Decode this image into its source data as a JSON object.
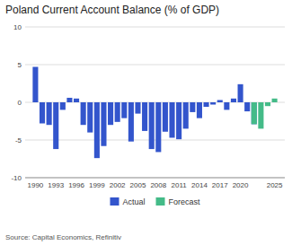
{
  "chart_data": {
    "type": "bar",
    "title": "Poland Current Account Balance (% of GDP)",
    "annotations": [
      "Source: Capital Economics, Refinitiv"
    ],
    "series": [
      {
        "name": "Actual",
        "color": "#3355cc",
        "x": [
          1990,
          1991,
          1992,
          1993,
          1994,
          1995,
          1996,
          1997,
          1998,
          1999,
          2000,
          2001,
          2002,
          2003,
          2004,
          2005,
          2006,
          2007,
          2008,
          2009,
          2010,
          2011,
          2012,
          2013,
          2014,
          2015,
          2016,
          2017,
          2018,
          2019,
          2020,
          2021,
          2022
        ],
        "values": [
          4.7,
          -2.8,
          -3.0,
          -6.2,
          -1.0,
          0.6,
          0.5,
          -3.0,
          -4.0,
          -7.4,
          -5.8,
          -3.0,
          -2.6,
          -2.1,
          -5.2,
          -1.5,
          -3.8,
          -6.2,
          -6.6,
          -3.9,
          -4.7,
          -4.9,
          -3.5,
          -1.3,
          -2.1,
          -0.6,
          -0.3,
          0.3,
          -1.0,
          0.5,
          2.4,
          -1.2,
          -2.9
        ]
      },
      {
        "name": "Forecast",
        "color": "#44bb88",
        "x": [
          2022,
          2023,
          2024,
          2025
        ],
        "values": [
          -2.9,
          -3.5,
          -0.5,
          0.5
        ]
      }
    ],
    "xlim": [
      1988.5,
      2026.5
    ],
    "xticks": [
      1990,
      1993,
      1996,
      1999,
      2002,
      2005,
      2008,
      2011,
      2014,
      2017,
      2020,
      2025
    ],
    "ylim": [
      -10,
      10
    ],
    "yticks": [
      -10,
      -5,
      0,
      5,
      10
    ],
    "grid": true,
    "legend": "bottom"
  }
}
